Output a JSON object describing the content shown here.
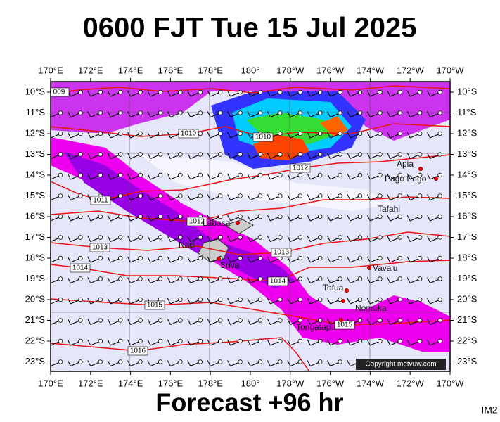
{
  "title": "0600 FJT Tue 15 Jul 2025",
  "footer": "Forecast +96 hr",
  "corner_tag": "IM2",
  "copyright": "Copyright metvuw.com",
  "longitudes": [
    "170°E",
    "172°E",
    "174°E",
    "176°E",
    "178°E",
    "180°",
    "178°W",
    "176°W",
    "174°W",
    "172°W",
    "170°W"
  ],
  "latitudes": [
    "10°S",
    "11°S",
    "12°S",
    "13°S",
    "14°S",
    "15°S",
    "16°S",
    "17°S",
    "18°S",
    "19°S",
    "20°S",
    "21°S",
    "22°S",
    "23°S"
  ],
  "places": [
    "Apia",
    "Pago Pago",
    "Tafahi",
    "Labasa",
    "Nadi",
    "Suva",
    "Vava'u",
    "Tofua",
    "Nomuka",
    "Tongatapu"
  ],
  "isobars": [
    "009",
    "1010",
    "1010",
    "1011",
    "1012",
    "1012",
    "1013",
    "1013",
    "1014",
    "1014",
    "1015",
    "1015",
    "1016"
  ]
}
